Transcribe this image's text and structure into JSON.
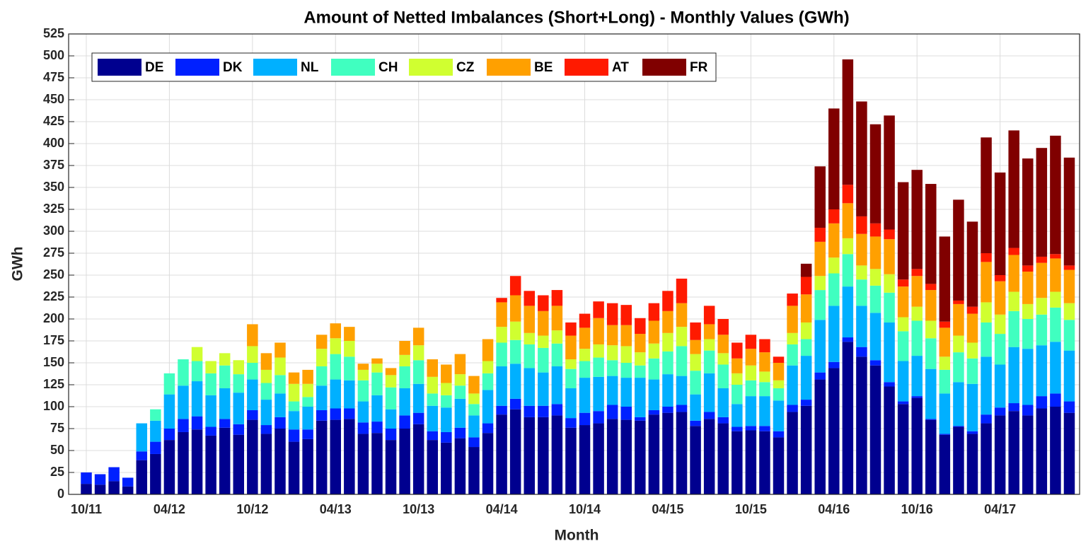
{
  "chart_data": {
    "type": "stacked-bar",
    "title": "Amount of Netted Imbalances (Short+Long) - Monthly Values  (GWh)",
    "x_label": "Month",
    "y_label": "GWh",
    "categories": [
      "10/11",
      null,
      null,
      null,
      null,
      null,
      "04/12",
      null,
      null,
      null,
      null,
      null,
      "10/12",
      null,
      null,
      null,
      null,
      null,
      "04/13",
      null,
      null,
      null,
      null,
      null,
      "10/13",
      null,
      null,
      null,
      null,
      null,
      "04/14",
      null,
      null,
      null,
      null,
      null,
      "10/14",
      null,
      null,
      null,
      null,
      null,
      "04/15",
      null,
      null,
      null,
      null,
      null,
      "10/15",
      null,
      null,
      null,
      null,
      null,
      "04/16",
      null,
      null,
      null,
      null,
      null,
      "10/16",
      null,
      null,
      null,
      null,
      null,
      "04/17",
      null,
      null,
      null,
      null,
      null
    ],
    "ylim": [
      0,
      525
    ],
    "yticks": [
      0,
      25,
      50,
      75,
      100,
      125,
      150,
      175,
      200,
      225,
      250,
      275,
      300,
      325,
      350,
      375,
      400,
      425,
      450,
      475,
      500,
      525
    ],
    "grid": true,
    "legend": "top-left",
    "series": [
      {
        "name": "DE",
        "color": "#00008f",
        "values": [
          12,
          11,
          15,
          9,
          39,
          46,
          62,
          71,
          74,
          67,
          76,
          68,
          85,
          69,
          75,
          60,
          63,
          84,
          85,
          86,
          69,
          70,
          62,
          75,
          80,
          62,
          59,
          64,
          54,
          70,
          91,
          97,
          88,
          88,
          90,
          76,
          79,
          81,
          86,
          85,
          84,
          91,
          93,
          94,
          78,
          86,
          81,
          72,
          73,
          72,
          65,
          94,
          101,
          131,
          144,
          174,
          157,
          147,
          123,
          103,
          110,
          85,
          68,
          77,
          69,
          81,
          90,
          95,
          90,
          98,
          100,
          93
        ]
      },
      {
        "name": "DK",
        "color": "#0020ff",
        "values": [
          13,
          12,
          16,
          10,
          10,
          14,
          13,
          15,
          15,
          10,
          10,
          12,
          11,
          10,
          13,
          14,
          11,
          12,
          13,
          12,
          13,
          13,
          13,
          15,
          13,
          10,
          12,
          12,
          11,
          11,
          10,
          12,
          13,
          13,
          13,
          11,
          14,
          14,
          16,
          15,
          4,
          5,
          7,
          8,
          6,
          8,
          7,
          5,
          5,
          6,
          7,
          8,
          7,
          8,
          7,
          5,
          11,
          6,
          5,
          3,
          2,
          1,
          1,
          1,
          3,
          10,
          9,
          9,
          12,
          14,
          15,
          13
        ]
      },
      {
        "name": "NL",
        "color": "#00b0ff",
        "values": [
          0,
          0,
          0,
          0,
          32,
          24,
          39,
          38,
          40,
          36,
          35,
          36,
          35,
          29,
          27,
          21,
          26,
          28,
          33,
          32,
          24,
          30,
          22,
          31,
          33,
          29,
          28,
          33,
          25,
          38,
          45,
          40,
          43,
          38,
          43,
          34,
          40,
          39,
          33,
          33,
          45,
          35,
          37,
          33,
          30,
          44,
          33,
          26,
          34,
          34,
          35,
          45,
          50,
          60,
          64,
          58,
          47,
          54,
          68,
          46,
          46,
          57,
          46,
          50,
          54,
          66,
          49,
          64,
          64,
          58,
          59,
          58
        ]
      },
      {
        "name": "CH",
        "color": "#40ffc0",
        "values": [
          0,
          0,
          0,
          0,
          0,
          13,
          24,
          30,
          23,
          25,
          26,
          21,
          19,
          19,
          21,
          11,
          11,
          22,
          29,
          27,
          24,
          26,
          25,
          25,
          27,
          14,
          14,
          15,
          13,
          19,
          27,
          27,
          27,
          28,
          26,
          22,
          19,
          22,
          18,
          17,
          14,
          24,
          26,
          34,
          27,
          26,
          27,
          22,
          18,
          16,
          14,
          24,
          19,
          34,
          37,
          37,
          30,
          31,
          34,
          34,
          40,
          35,
          27,
          34,
          29,
          39,
          35,
          41,
          34,
          35,
          39,
          35
        ]
      },
      {
        "name": "CZ",
        "color": "#d0ff30",
        "values": [
          0,
          0,
          0,
          0,
          0,
          0,
          0,
          0,
          16,
          14,
          14,
          16,
          19,
          15,
          20,
          20,
          15,
          20,
          18,
          18,
          12,
          10,
          14,
          13,
          17,
          19,
          14,
          13,
          12,
          14,
          18,
          21,
          13,
          14,
          15,
          11,
          14,
          15,
          17,
          19,
          15,
          17,
          21,
          22,
          19,
          13,
          13,
          13,
          17,
          12,
          9,
          13,
          19,
          16,
          18,
          18,
          16,
          19,
          21,
          16,
          16,
          20,
          15,
          19,
          18,
          23,
          22,
          22,
          17,
          19,
          18,
          19
        ]
      },
      {
        "name": "BE",
        "color": "#ffa000",
        "values": [
          0,
          0,
          0,
          0,
          0,
          0,
          0,
          0,
          0,
          0,
          0,
          0,
          25,
          19,
          17,
          13,
          16,
          16,
          17,
          16,
          7,
          6,
          8,
          16,
          20,
          20,
          21,
          23,
          20,
          25,
          28,
          30,
          31,
          28,
          28,
          27,
          24,
          30,
          23,
          24,
          21,
          26,
          25,
          27,
          16,
          17,
          21,
          17,
          19,
          22,
          20,
          31,
          32,
          39,
          39,
          40,
          36,
          37,
          40,
          35,
          35,
          35,
          33,
          36,
          33,
          46,
          38,
          42,
          37,
          40,
          38,
          38
        ]
      },
      {
        "name": "AT",
        "color": "#ff1a00",
        "values": [
          0,
          0,
          0,
          0,
          0,
          0,
          0,
          0,
          0,
          0,
          0,
          0,
          0,
          0,
          0,
          0,
          0,
          0,
          0,
          0,
          0,
          0,
          0,
          0,
          0,
          0,
          0,
          0,
          0,
          0,
          5,
          22,
          17,
          18,
          18,
          15,
          16,
          19,
          25,
          23,
          18,
          20,
          23,
          28,
          20,
          21,
          18,
          18,
          16,
          15,
          7,
          14,
          20,
          16,
          16,
          21,
          20,
          15,
          11,
          8,
          8,
          7,
          7,
          4,
          8,
          10,
          7,
          8,
          7,
          7,
          5,
          5
        ]
      },
      {
        "name": "FR",
        "color": "#800000",
        "values": [
          0,
          0,
          0,
          0,
          0,
          0,
          0,
          0,
          0,
          0,
          0,
          0,
          0,
          0,
          0,
          0,
          0,
          0,
          0,
          0,
          0,
          0,
          0,
          0,
          0,
          0,
          0,
          0,
          0,
          0,
          0,
          0,
          0,
          0,
          0,
          0,
          0,
          0,
          0,
          0,
          0,
          0,
          0,
          0,
          0,
          0,
          0,
          0,
          0,
          0,
          0,
          0,
          15,
          70,
          115,
          143,
          131,
          113,
          130,
          111,
          113,
          114,
          97,
          115,
          97,
          132,
          117,
          134,
          122,
          124,
          135,
          123
        ]
      }
    ]
  }
}
